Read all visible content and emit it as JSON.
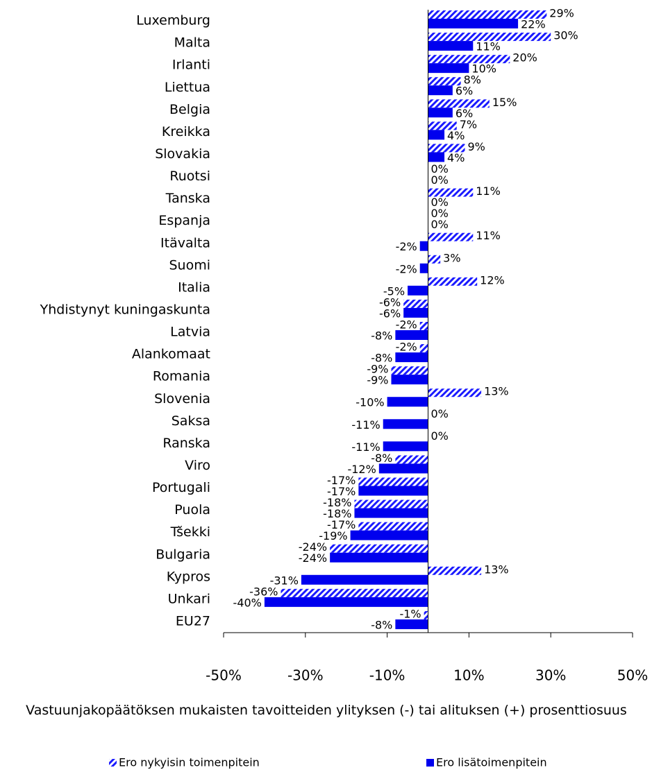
{
  "chart_data": {
    "type": "hbar",
    "x_label": "Vastuunjakopäätöksen mukaisten tavoitteiden ylityksen (-) tai alituksen (+) prosenttiosuus",
    "categories": [
      "Luxemburg",
      "Malta",
      "Irlanti",
      "Liettua",
      "Belgia",
      "Kreikka",
      "Slovakia",
      "Ruotsi",
      "Tanska",
      "Espanja",
      "Itävalta",
      "Suomi",
      "Italia",
      "Yhdistynyt kuningaskunta",
      "Latvia",
      "Alankomaat",
      "Romania",
      "Slovenia",
      "Saksa",
      "Ranska",
      "Viro",
      "Portugali",
      "Puola",
      "Tšekki",
      "Bulgaria",
      "Kypros",
      "Unkari",
      "EU27"
    ],
    "series": [
      {
        "name": "Ero nykyisin toimenpitein",
        "color": "#1a1aff",
        "pattern": "hatch",
        "values": [
          29,
          30,
          20,
          8,
          15,
          7,
          9,
          0,
          11,
          0,
          11,
          3,
          12,
          -6,
          -2,
          -2,
          -9,
          13,
          0,
          0,
          -8,
          -17,
          -18,
          -17,
          -24,
          13,
          -36,
          -1
        ],
        "value_labels": [
          "29%",
          "30%",
          "20%",
          "8%",
          "15%",
          "7%",
          "9%",
          "0%",
          "11%",
          "0%",
          "11%",
          "3%",
          "12%",
          "-6%",
          "-2%",
          "-2%",
          "-9%",
          "13%",
          "0%",
          "0%",
          "-8%",
          "-17%",
          "-18%",
          "-17%",
          "-24%",
          "13%",
          "-36%",
          "-1%"
        ]
      },
      {
        "name": "Ero lisätoimenpitein",
        "color": "#0000ee",
        "pattern": "solid",
        "values": [
          22,
          11,
          10,
          6,
          6,
          4,
          4,
          0,
          0,
          0,
          -2,
          -2,
          -5,
          -6,
          -8,
          -8,
          -9,
          -10,
          -11,
          -11,
          -12,
          -17,
          -18,
          -19,
          -24,
          -31,
          -40,
          -8
        ],
        "value_labels": [
          "22%",
          "11%",
          "10%",
          "6%",
          "6%",
          "4%",
          "4%",
          "0%",
          "0%",
          "0%",
          "-2%",
          "-2%",
          "-5%",
          "-6%",
          "-8%",
          "-8%",
          "-9%",
          "-10%",
          "-11%",
          "-11%",
          "-12%",
          "-17%",
          "-18%",
          "-19%",
          "-24%",
          "-31%",
          "-40%",
          "-8%"
        ]
      }
    ],
    "xlim": [
      -50,
      50
    ],
    "xticks": [
      {
        "value": -50,
        "label": "-50%"
      },
      {
        "value": -30,
        "label": "-30%"
      },
      {
        "value": -10,
        "label": "-10%"
      },
      {
        "value": 10,
        "label": "10%"
      },
      {
        "value": 30,
        "label": "30%"
      },
      {
        "value": 50,
        "label": "50%"
      }
    ],
    "legend": "bottom"
  }
}
